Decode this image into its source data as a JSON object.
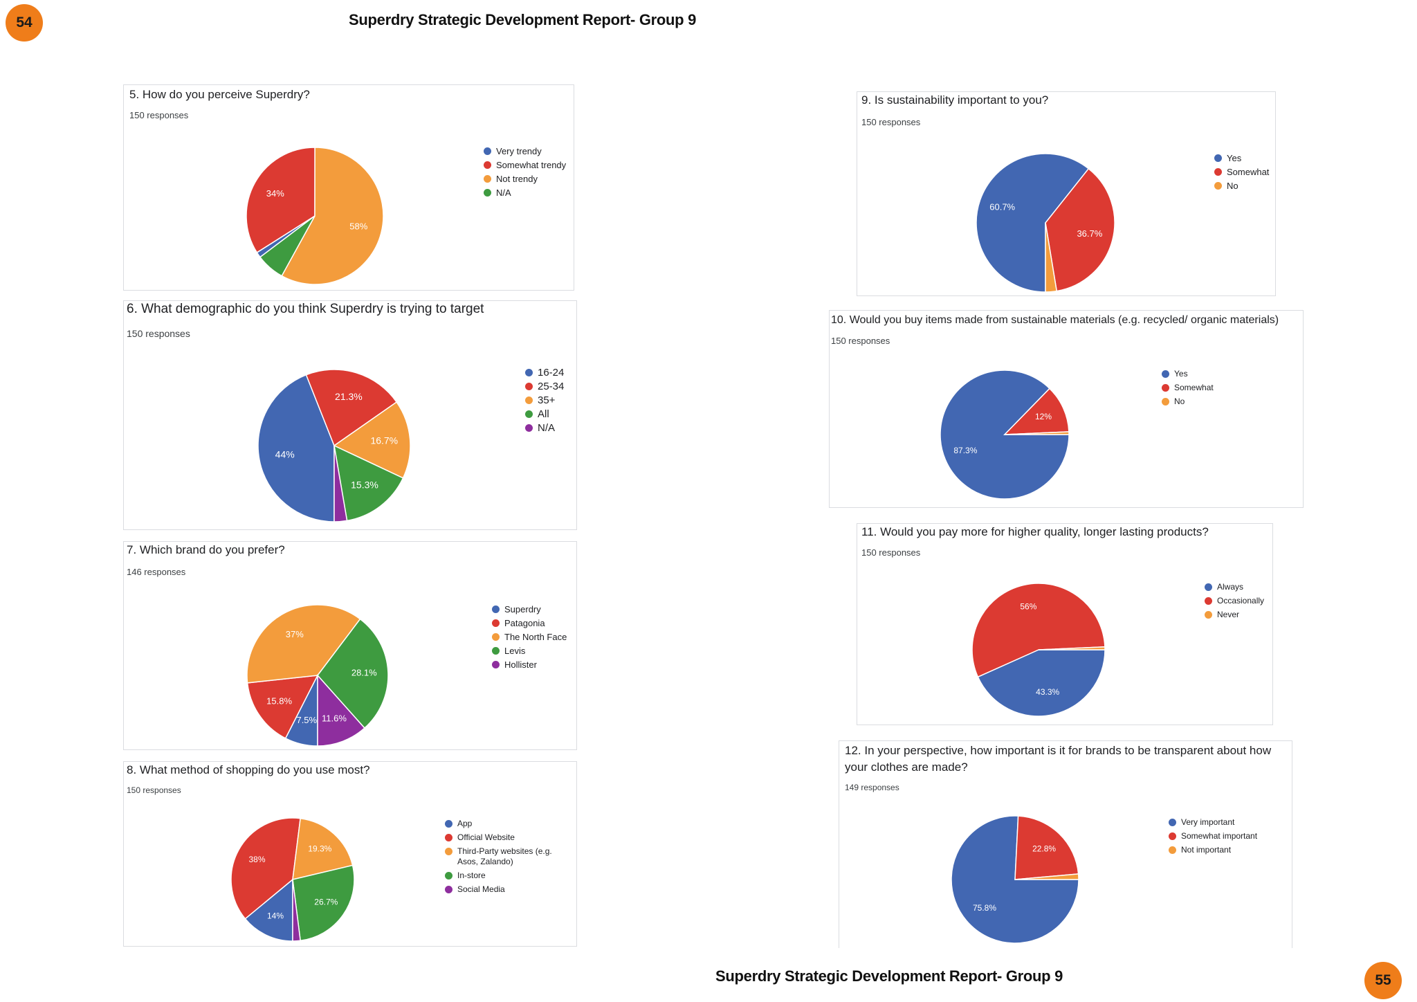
{
  "header": {
    "left_page_number": "54",
    "right_page_number": "55",
    "left_title": "Superdry Strategic Development Report- Group 9",
    "right_title": "Superdry Strategic Development Report- Group 9"
  },
  "colors": {
    "blue": "#4267b2",
    "red": "#dc3a32",
    "orange": "#f39c3c",
    "green": "#3e9b40",
    "purple": "#8e2e9e",
    "badge": "#ef7d1a"
  },
  "chart_data": [
    {
      "id": "q5",
      "type": "pie",
      "title": "5. How do you perceive Superdry?",
      "responses": "150 responses",
      "categories": [
        "Very trendy",
        "Somewhat trendy",
        "Not trendy",
        "N/A"
      ],
      "values": [
        1.3,
        34,
        58,
        6.7
      ],
      "labels": [
        "",
        "34%",
        "58%",
        ""
      ],
      "colors": [
        "#4267b2",
        "#dc3a32",
        "#f39c3c",
        "#3e9b40"
      ],
      "legend": "right"
    },
    {
      "id": "q6",
      "type": "pie",
      "title": "6. What demographic do you think Superdry is trying to target",
      "responses": "150 responses",
      "categories": [
        "16-24",
        "25-34",
        "35+",
        "All",
        "N/A"
      ],
      "values": [
        44,
        21.3,
        16.7,
        15.3,
        2.7
      ],
      "labels": [
        "44%",
        "21.3%",
        "16.7%",
        "15.3%",
        ""
      ],
      "colors": [
        "#4267b2",
        "#dc3a32",
        "#f39c3c",
        "#3e9b40",
        "#8e2e9e"
      ],
      "legend": "right"
    },
    {
      "id": "q7",
      "type": "pie",
      "title": "7. Which brand do you prefer?",
      "responses": "146 responses",
      "categories": [
        "Superdry",
        "Patagonia",
        "The North Face",
        "Levis",
        "Hollister"
      ],
      "values": [
        7.5,
        15.8,
        37,
        28.1,
        11.6
      ],
      "labels": [
        "7.5%",
        "15.8%",
        "37%",
        "28.1%",
        "11.6%"
      ],
      "colors": [
        "#4267b2",
        "#dc3a32",
        "#f39c3c",
        "#3e9b40",
        "#8e2e9e"
      ],
      "legend": "right"
    },
    {
      "id": "q8",
      "type": "pie",
      "title": "8. What method of shopping do you use most?",
      "responses": "150 responses",
      "categories": [
        "App",
        "Official Website",
        "Third-Party websites (e.g. Asos, Zalando)",
        "In-store",
        "Social Media"
      ],
      "values": [
        14,
        38,
        19.3,
        26.7,
        2
      ],
      "labels": [
        "14%",
        "38%",
        "19.3%",
        "26.7%",
        ""
      ],
      "colors": [
        "#4267b2",
        "#dc3a32",
        "#f39c3c",
        "#3e9b40",
        "#8e2e9e"
      ],
      "legend": "right"
    },
    {
      "id": "q9",
      "type": "pie",
      "title": "9. Is sustainability important to you?",
      "responses": "150 responses",
      "categories": [
        "Yes",
        "Somewhat",
        "No"
      ],
      "values": [
        60.7,
        36.7,
        2.6
      ],
      "labels": [
        "60.7%",
        "36.7%",
        ""
      ],
      "colors": [
        "#4267b2",
        "#dc3a32",
        "#f39c3c"
      ],
      "legend": "right"
    },
    {
      "id": "q10",
      "type": "pie",
      "title": "10. Would you buy items made from sustainable materials (e.g. recycled/ organic materials)",
      "responses": "150 responses",
      "categories": [
        "Yes",
        "Somewhat",
        "No"
      ],
      "values": [
        87.3,
        12,
        0.7
      ],
      "labels": [
        "87.3%",
        "12%",
        ""
      ],
      "colors": [
        "#4267b2",
        "#dc3a32",
        "#f39c3c"
      ],
      "legend": "right"
    },
    {
      "id": "q11",
      "type": "pie",
      "title": "11. Would you pay more for higher quality, longer lasting products?",
      "responses": "150 responses",
      "categories": [
        "Always",
        "Occasionally",
        "Never"
      ],
      "values": [
        43.3,
        56,
        0.7
      ],
      "labels": [
        "43.3%",
        "56%",
        ""
      ],
      "colors": [
        "#4267b2",
        "#dc3a32",
        "#f39c3c"
      ],
      "legend": "right"
    },
    {
      "id": "q12",
      "type": "pie",
      "title": "12. In your perspective, how important is it for brands to be transparent about how your clothes are made?",
      "responses": "149 responses",
      "categories": [
        "Very important",
        "Somewhat important",
        "Not important"
      ],
      "values": [
        75.8,
        22.8,
        1.4
      ],
      "labels": [
        "75.8%",
        "22.8%",
        ""
      ],
      "colors": [
        "#4267b2",
        "#dc3a32",
        "#f39c3c"
      ],
      "legend": "right"
    }
  ]
}
